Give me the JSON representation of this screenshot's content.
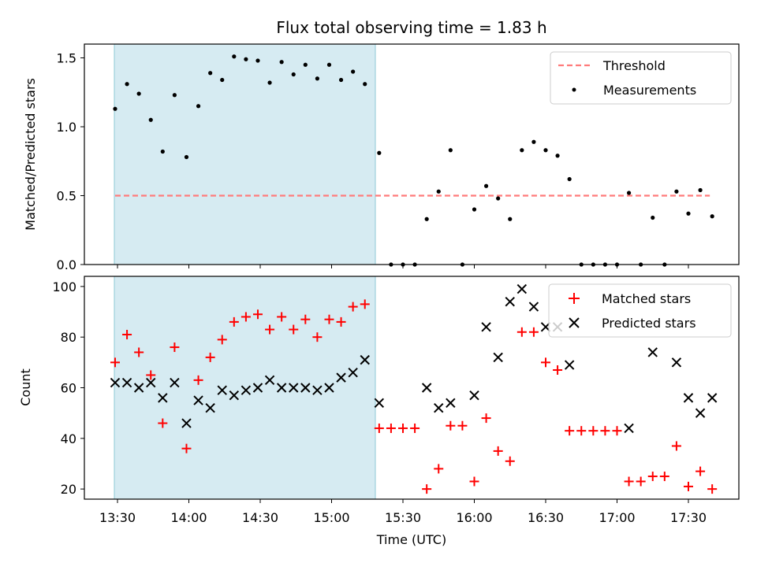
{
  "chart_data": [
    {
      "type": "scatter",
      "title": "Flux total observing time = 1.83 h",
      "xlabel": "",
      "ylabel": "Matched/Predicted stars",
      "ylim": [
        0,
        1.6
      ],
      "yticks": [
        "0.0",
        "0.5",
        "1.0",
        "1.5"
      ],
      "grid": false,
      "legend_position": "top-right",
      "shaded_interval": [
        "13:29",
        "15:19"
      ],
      "threshold": {
        "name": "Threshold",
        "value": 0.5,
        "x_range": [
          "13:29",
          "17:39"
        ],
        "color": "#ff7b7b"
      },
      "series": [
        {
          "name": "Measurements",
          "color": "#000000",
          "x": [
            "13:29",
            "13:34",
            "13:39",
            "13:44",
            "13:49",
            "13:54",
            "13:59",
            "14:04",
            "14:09",
            "14:14",
            "14:19",
            "14:24",
            "14:29",
            "14:34",
            "14:39",
            "14:44",
            "14:49",
            "14:54",
            "14:59",
            "15:04",
            "15:09",
            "15:14",
            "15:20",
            "15:25",
            "15:30",
            "15:35",
            "15:40",
            "15:45",
            "15:50",
            "15:55",
            "16:00",
            "16:05",
            "16:10",
            "16:15",
            "16:20",
            "16:25",
            "16:30",
            "16:35",
            "16:40",
            "16:45",
            "16:50",
            "16:55",
            "17:00",
            "17:05",
            "17:10",
            "17:15",
            "17:20",
            "17:25",
            "17:30",
            "17:35",
            "17:40"
          ],
          "y": [
            1.13,
            1.31,
            1.24,
            1.05,
            0.82,
            1.23,
            0.78,
            1.15,
            1.39,
            1.34,
            1.51,
            1.49,
            1.48,
            1.32,
            1.47,
            1.38,
            1.45,
            1.35,
            1.45,
            1.34,
            1.4,
            1.31,
            0.81,
            0.0,
            0.0,
            0.0,
            0.33,
            0.53,
            0.83,
            0.0,
            0.4,
            0.57,
            0.48,
            0.33,
            0.83,
            0.89,
            0.83,
            0.79,
            0.62,
            0.0,
            0.0,
            0.0,
            0.0,
            0.52,
            0.0,
            0.34,
            0.0,
            0.53,
            0.37,
            0.54,
            0.35
          ]
        }
      ]
    },
    {
      "type": "scatter",
      "title": "",
      "xlabel": "Time (UTC)",
      "ylabel": "Count",
      "ylim": [
        16,
        104
      ],
      "yticks": [
        "20",
        "40",
        "60",
        "80",
        "100"
      ],
      "xticks": [
        "13:30",
        "14:00",
        "14:30",
        "15:00",
        "15:30",
        "16:00",
        "16:30",
        "17:00",
        "17:30"
      ],
      "grid": false,
      "legend_position": "top-right",
      "shaded_interval": [
        "13:29",
        "15:19"
      ],
      "series": [
        {
          "name": "Matched stars",
          "marker": "+",
          "color": "#ff0000",
          "x": [
            "13:29",
            "13:34",
            "13:39",
            "13:44",
            "13:49",
            "13:54",
            "13:59",
            "14:04",
            "14:09",
            "14:14",
            "14:19",
            "14:24",
            "14:29",
            "14:34",
            "14:39",
            "14:44",
            "14:49",
            "14:54",
            "14:59",
            "15:04",
            "15:09",
            "15:14",
            "15:20",
            "15:25",
            "15:30",
            "15:35",
            "15:40",
            "15:45",
            "15:50",
            "15:55",
            "16:00",
            "16:05",
            "16:10",
            "16:15",
            "16:20",
            "16:25",
            "16:30",
            "16:35",
            "16:40",
            "16:45",
            "16:50",
            "16:55",
            "17:00",
            "17:05",
            "17:10",
            "17:15",
            "17:20",
            "17:25",
            "17:30",
            "17:35",
            "17:40"
          ],
          "y": [
            70,
            81,
            74,
            65,
            46,
            76,
            36,
            63,
            72,
            79,
            86,
            88,
            89,
            83,
            88,
            83,
            87,
            80,
            87,
            86,
            92,
            93,
            44,
            44,
            44,
            44,
            20,
            28,
            45,
            45,
            23,
            48,
            35,
            31,
            82,
            82,
            70,
            67,
            43,
            43,
            43,
            43,
            43,
            23,
            23,
            25,
            25,
            37,
            21,
            27,
            20
          ]
        },
        {
          "name": "Predicted stars",
          "marker": "x",
          "color": "#000000",
          "x": [
            "13:29",
            "13:34",
            "13:39",
            "13:44",
            "13:49",
            "13:54",
            "13:59",
            "14:04",
            "14:09",
            "14:14",
            "14:19",
            "14:24",
            "14:29",
            "14:34",
            "14:39",
            "14:44",
            "14:49",
            "14:54",
            "14:59",
            "15:04",
            "15:09",
            "15:14",
            "15:20",
            "15:40",
            "15:45",
            "15:50",
            "16:00",
            "16:05",
            "16:10",
            "16:15",
            "16:20",
            "16:25",
            "16:30",
            "16:35",
            "16:40",
            "17:05",
            "17:15",
            "17:25",
            "17:30",
            "17:35",
            "17:40"
          ],
          "y": [
            62,
            62,
            60,
            62,
            56,
            62,
            46,
            55,
            52,
            59,
            57,
            59,
            60,
            63,
            60,
            60,
            60,
            59,
            60,
            64,
            66,
            71,
            54,
            60,
            52,
            54,
            57,
            84,
            72,
            94,
            99,
            92,
            84,
            84,
            69,
            44,
            74,
            70,
            56,
            50,
            56
          ]
        }
      ]
    }
  ]
}
